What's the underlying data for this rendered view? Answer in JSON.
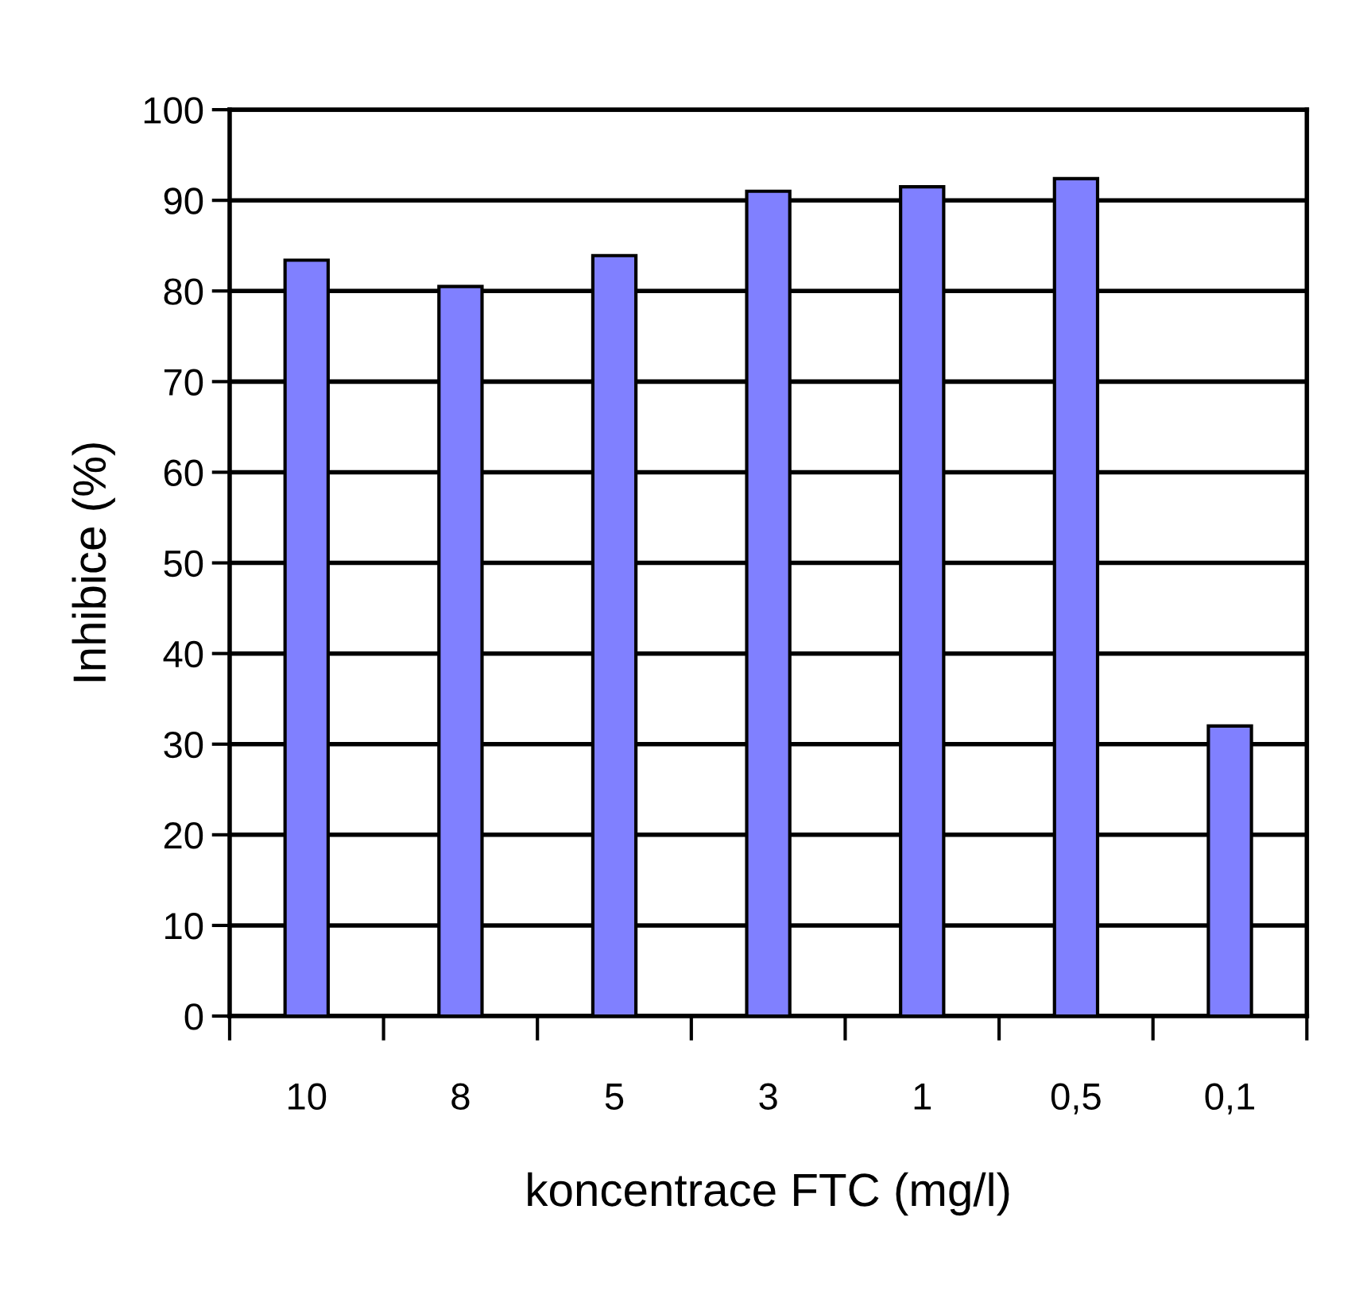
{
  "chart_data": {
    "type": "bar",
    "xlabel": "koncentrace FTC (mg/l)",
    "ylabel": "Inhibice (%)",
    "categories": [
      "10",
      "8",
      "5",
      "3",
      "1",
      "0,5",
      "0,1"
    ],
    "values": [
      83.4,
      80.5,
      83.9,
      91.0,
      91.5,
      92.4,
      32.0
    ],
    "color": "#8080ff",
    "ylim": [
      0,
      100
    ],
    "yticks": [
      0,
      10,
      20,
      30,
      40,
      50,
      60,
      70,
      80,
      90,
      100
    ],
    "grid": "y",
    "legend": false
  }
}
